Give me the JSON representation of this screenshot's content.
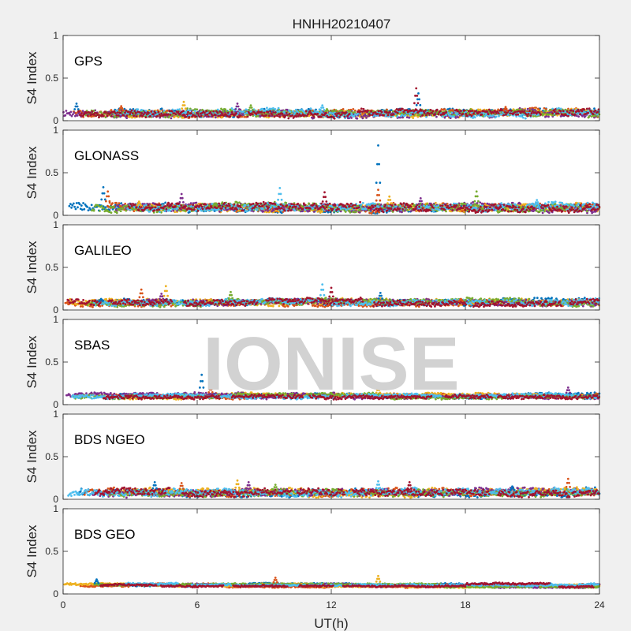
{
  "chart_data": {
    "type": "scatter",
    "title": "HNHH20210407",
    "xlabel": "UT(h)",
    "ylabel": "S4 Index",
    "xlim": [
      0,
      24
    ],
    "ylim": [
      0,
      1
    ],
    "x_ticks": [
      0,
      6,
      12,
      18,
      24
    ],
    "y_ticks": [
      0,
      0.5,
      1
    ],
    "y_tick_labels": [
      "0",
      "0.5",
      "1"
    ],
    "grid": false,
    "watermark": "IONISE",
    "colors": [
      "#0072bd",
      "#d95319",
      "#edb120",
      "#7e2f8e",
      "#77ac30",
      "#4dbeee",
      "#a2142f"
    ],
    "panels": [
      {
        "system": "GPS",
        "baseline": 0.09,
        "noise": 0.035,
        "spikes": [
          [
            0.6,
            0.2
          ],
          [
            2.6,
            0.17
          ],
          [
            5.4,
            0.22
          ],
          [
            7.8,
            0.2
          ],
          [
            8.4,
            0.18
          ],
          [
            11.6,
            0.18
          ],
          [
            15.8,
            0.38
          ],
          [
            15.9,
            0.32
          ],
          [
            19.8,
            0.16
          ]
        ]
      },
      {
        "system": "GLONASS",
        "baseline": 0.09,
        "noise": 0.04,
        "spikes": [
          [
            1.8,
            0.33
          ],
          [
            2.0,
            0.28
          ],
          [
            3.4,
            0.16
          ],
          [
            5.3,
            0.25
          ],
          [
            6.8,
            0.14
          ],
          [
            9.7,
            0.32
          ],
          [
            11.7,
            0.27
          ],
          [
            14.1,
            0.82
          ],
          [
            14.1,
            0.3
          ],
          [
            14.6,
            0.22
          ],
          [
            16.0,
            0.2
          ],
          [
            18.5,
            0.28
          ],
          [
            21.2,
            0.18
          ]
        ]
      },
      {
        "system": "GALILEO",
        "baseline": 0.09,
        "noise": 0.03,
        "spikes": [
          [
            1.7,
            0.13
          ],
          [
            3.5,
            0.24
          ],
          [
            4.6,
            0.28
          ],
          [
            4.4,
            0.19
          ],
          [
            7.5,
            0.21
          ],
          [
            11.6,
            0.3
          ],
          [
            12.0,
            0.26
          ],
          [
            14.2,
            0.2
          ],
          [
            17.8,
            0.13
          ]
        ]
      },
      {
        "system": "SBAS",
        "baseline": 0.1,
        "noise": 0.02,
        "spikes": [
          [
            6.2,
            0.35
          ],
          [
            6.6,
            0.21
          ],
          [
            14.1,
            0.2
          ],
          [
            22.6,
            0.2
          ]
        ]
      },
      {
        "system": "BDS NGEO",
        "baseline": 0.08,
        "noise": 0.035,
        "spikes": [
          [
            4.1,
            0.2
          ],
          [
            5.3,
            0.19
          ],
          [
            7.8,
            0.22
          ],
          [
            8.3,
            0.2
          ],
          [
            9.5,
            0.17
          ],
          [
            14.1,
            0.21
          ],
          [
            15.5,
            0.2
          ],
          [
            20.1,
            0.15
          ],
          [
            22.6,
            0.24
          ]
        ]
      },
      {
        "system": "BDS GEO",
        "baseline": 0.1,
        "noise": 0.01,
        "spikes": [
          [
            1.5,
            0.17
          ],
          [
            9.5,
            0.19
          ],
          [
            14.1,
            0.21
          ]
        ]
      }
    ]
  }
}
